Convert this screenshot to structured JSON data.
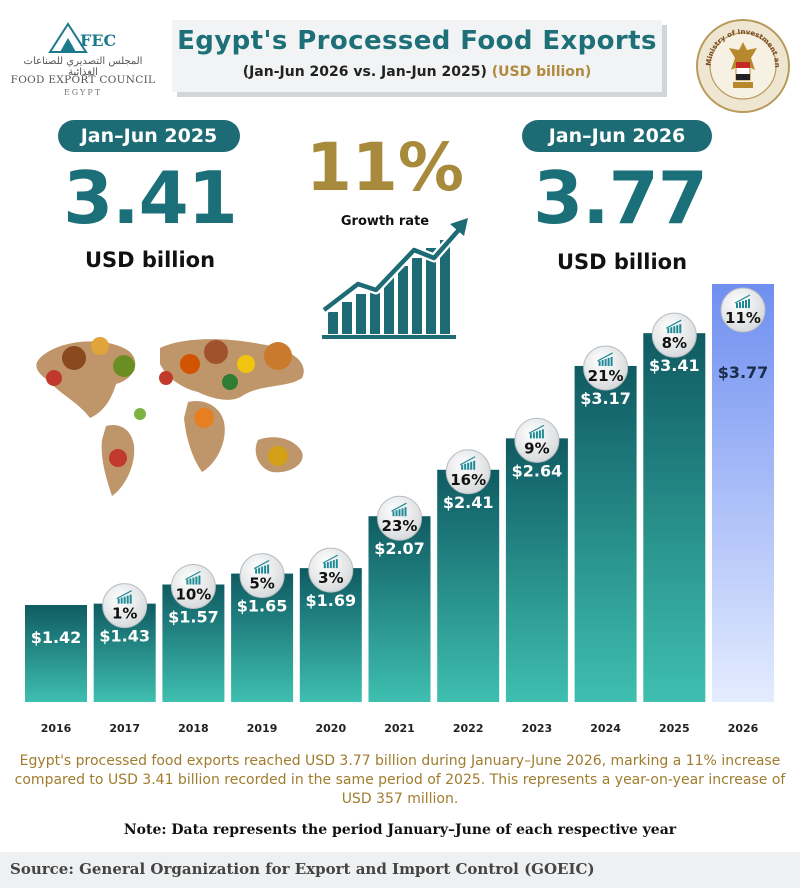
{
  "header": {
    "logo_acronym": "FEC",
    "logo_arabic": "المجلس التصديري للصناعات الغذائية",
    "logo_name": "FOOD EXPORT COUNCIL",
    "logo_country": "EGYPT",
    "title": "Egypt's Processed Food Exports",
    "subtitle": "(Jan-Jun 2026 vs. Jan-Jun 2025)",
    "subtitle_unit": "(USD billion)",
    "seal_text": "Ministry of Investment and Foreign Trade"
  },
  "summary": {
    "left_period": "Jan–Jun 2025",
    "left_value": "3.41",
    "left_unit": "USD billion",
    "right_period": "Jan–Jun 2026",
    "right_value": "3.77",
    "right_unit": "USD billion",
    "growth_value": "11%",
    "growth_label": "Growth rate"
  },
  "colors": {
    "teal_dark": "#0f5b62",
    "teal_light": "#3fbfb0",
    "highlight_top": "#6f8ff0",
    "highlight_bottom": "#e4ecff",
    "gold": "#a88a3c"
  },
  "chart_data": {
    "type": "bar",
    "categories": [
      "2016",
      "2017",
      "2018",
      "2019",
      "2020",
      "2021",
      "2022",
      "2023",
      "2024",
      "2025",
      "2026"
    ],
    "values": [
      1.42,
      1.43,
      1.57,
      1.65,
      1.69,
      2.07,
      2.41,
      2.64,
      3.17,
      3.41,
      3.77
    ],
    "value_labels": [
      "$1.42",
      "$1.43",
      "$1.57",
      "$1.65",
      "$1.69",
      "$2.07",
      "$2.41",
      "$2.64",
      "$3.17",
      "$3.41",
      "$3.77"
    ],
    "growth_labels": [
      "",
      "1%",
      "10%",
      "5%",
      "3%",
      "23%",
      "16%",
      "9%",
      "21%",
      "8%",
      "11%"
    ],
    "highlight_category": "2026",
    "ylim": [
      0,
      4
    ],
    "grid": false,
    "legend": "none",
    "title": "",
    "xlabel": "",
    "ylabel": ""
  },
  "description": "Egypt's processed food exports reached USD 3.77 billion during January–June 2026, marking a 11% increase compared to USD 3.41 billion recorded in the same period of 2025. This represents a year-on-year increase of USD 357 million.",
  "note": "Note: Data represents the period January–June of each respective year",
  "source": "Source: General Organization for Export and Import Control (GOEIC)"
}
